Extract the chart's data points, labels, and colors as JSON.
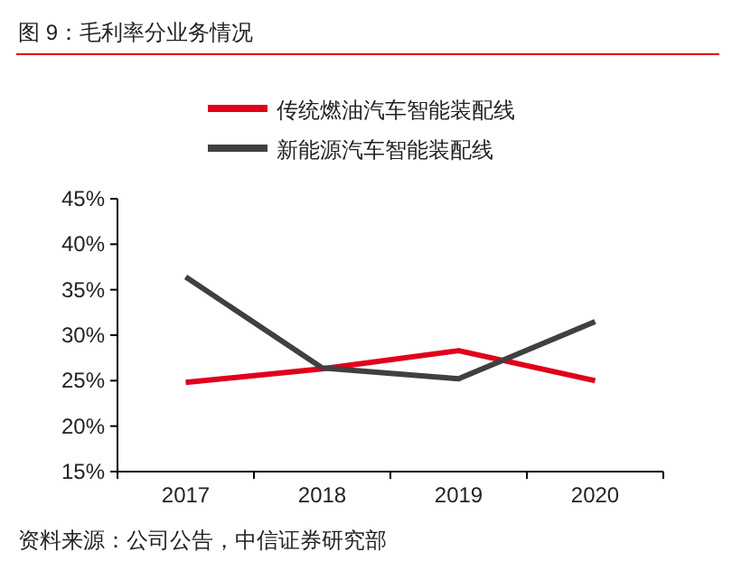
{
  "chart_data": {
    "type": "line",
    "title": "图 9：毛利率分业务情况",
    "categories": [
      "2017",
      "2018",
      "2019",
      "2020"
    ],
    "series": [
      {
        "name": "传统燃油汽车智能装配线",
        "color": "#e0001b",
        "values": [
          24.8,
          26.3,
          28.3,
          25.0
        ]
      },
      {
        "name": "新能源汽车智能装配线",
        "color": "#404040",
        "values": [
          36.4,
          26.4,
          25.2,
          31.5
        ]
      }
    ],
    "ylim": [
      15,
      45
    ],
    "yticks": [
      {
        "value": 15,
        "label": "15%"
      },
      {
        "value": 20,
        "label": "20%"
      },
      {
        "value": 25,
        "label": "25%"
      },
      {
        "value": 30,
        "label": "30%"
      },
      {
        "value": 35,
        "label": "35%"
      },
      {
        "value": 40,
        "label": "40%"
      },
      {
        "value": 45,
        "label": "45%"
      }
    ],
    "legend": "top",
    "grid": false,
    "marker": "none",
    "line_style": "solid",
    "annotations": [
      "资料来源：公司公告，中信证券研究部"
    ]
  }
}
